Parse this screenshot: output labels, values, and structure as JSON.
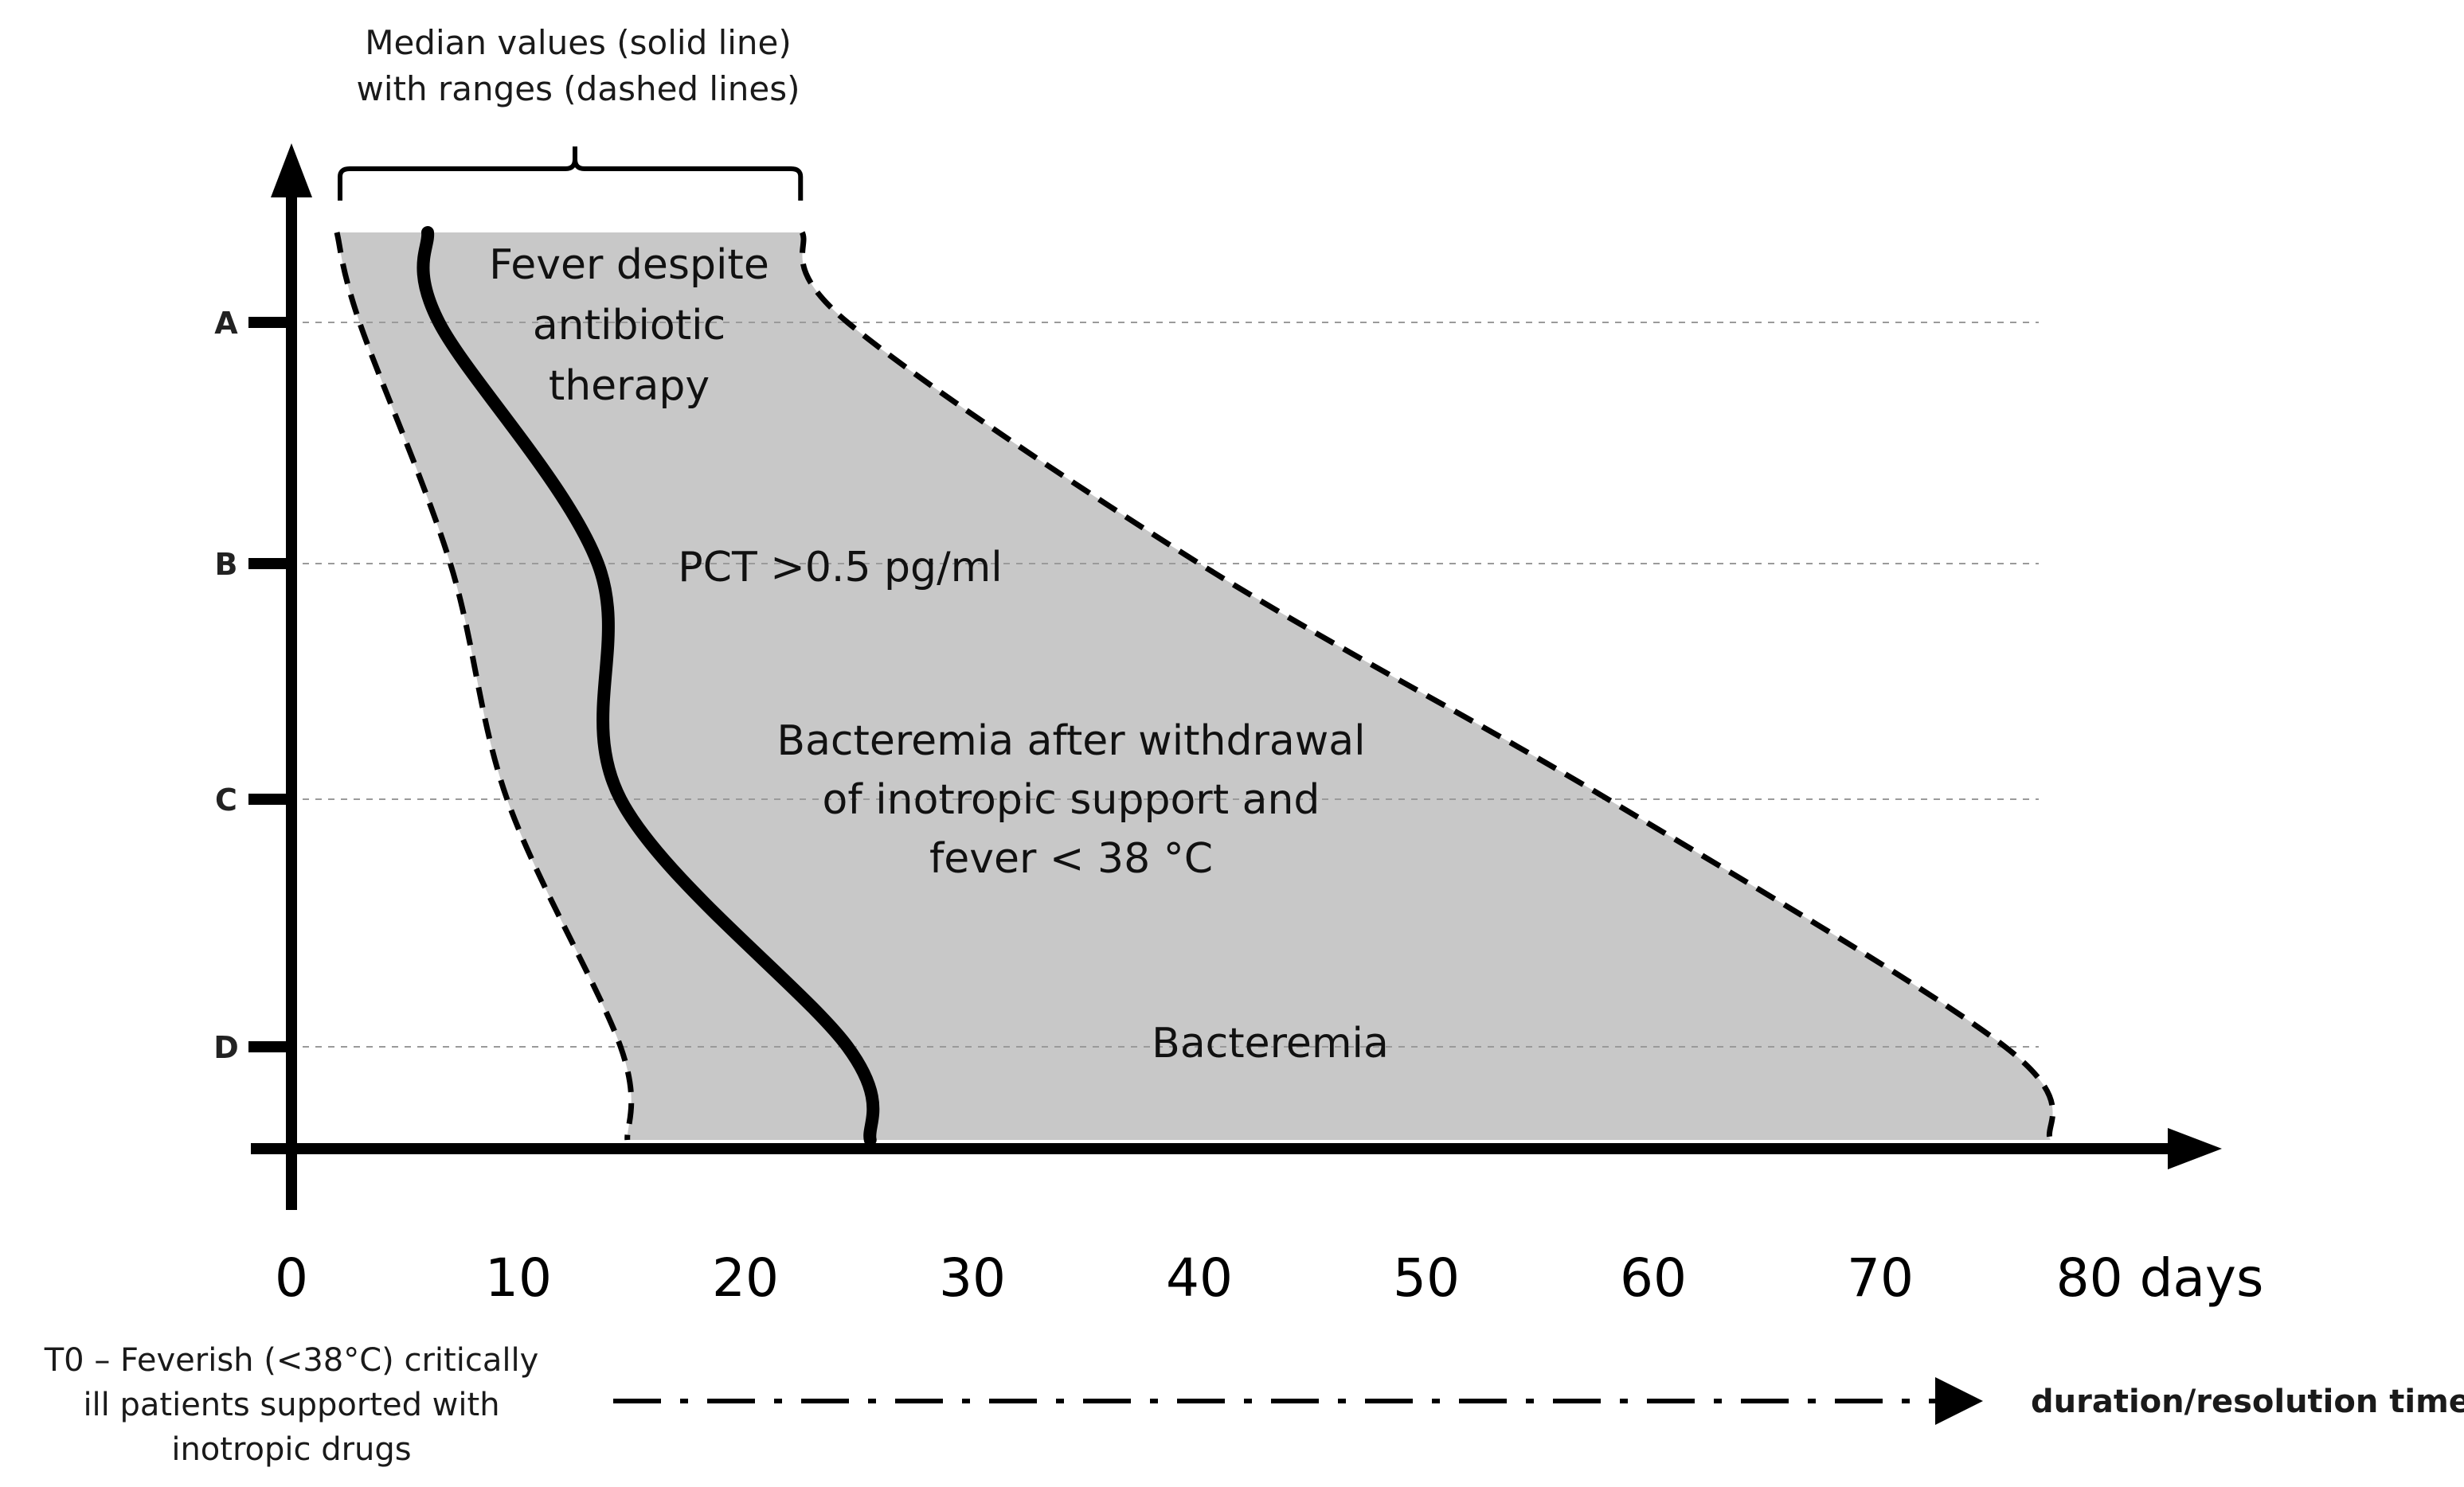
{
  "chart_data": {
    "type": "area",
    "title": "",
    "xlabel": "",
    "x_unit_label": "days",
    "xlim": [
      0,
      80
    ],
    "x_ticks": [
      0,
      10,
      20,
      30,
      40,
      50,
      60,
      70
    ],
    "y_categories": [
      "A",
      "B",
      "C",
      "D"
    ],
    "legend_note": {
      "line1": "Median values (solid line)",
      "line2": "with ranges (dashed lines)"
    },
    "series": [
      {
        "name": "Median values (solid line)",
        "style": "solid",
        "points": [
          {
            "y": "top",
            "x": 6
          },
          {
            "y": "A",
            "x": 6.5
          },
          {
            "y": "B",
            "x": 13.5
          },
          {
            "y": "C",
            "x": 14.5
          },
          {
            "y": "D",
            "x": 24.5
          },
          {
            "y": "baseline",
            "x": 25.5
          }
        ]
      },
      {
        "name": "range-min",
        "style": "dashed",
        "points": [
          {
            "y": "top",
            "x": 2
          },
          {
            "y": "A",
            "x": 3
          },
          {
            "y": "B",
            "x": 7
          },
          {
            "y": "C",
            "x": 9.5
          },
          {
            "y": "D",
            "x": 14.5
          },
          {
            "y": "baseline",
            "x": 14.8
          }
        ]
      },
      {
        "name": "range-max",
        "style": "dashed",
        "points": [
          {
            "y": "top",
            "x": 22.5
          },
          {
            "y": "A",
            "x": 24.5
          },
          {
            "y": "B",
            "x": 40
          },
          {
            "y": "C",
            "x": 58
          },
          {
            "y": "D",
            "x": 75.5
          },
          {
            "y": "baseline",
            "x": 77.5
          }
        ]
      }
    ],
    "annotations": [
      {
        "id": "fever",
        "lines": [
          "Fever despite",
          "antibiotic",
          "therapy"
        ],
        "level": "A"
      },
      {
        "id": "pct",
        "lines": [
          "PCT >0.5 pg/ml"
        ],
        "level": "B"
      },
      {
        "id": "bacteremia-withdrawal",
        "lines": [
          "Bacteremia after withdrawal",
          "of inotropic support and",
          "fever < 38 °C"
        ],
        "level": "C"
      },
      {
        "id": "bacteremia",
        "lines": [
          "Bacteremia"
        ],
        "level": "D"
      }
    ],
    "footer": {
      "left_lines": [
        "T0 – Feverish (<38°C) critically",
        "ill patients supported with",
        "inotropic drugs"
      ],
      "right_label": "duration/resolution time"
    },
    "fill_color": "#c8c8c8",
    "line_color": "#000000",
    "grid": false
  }
}
